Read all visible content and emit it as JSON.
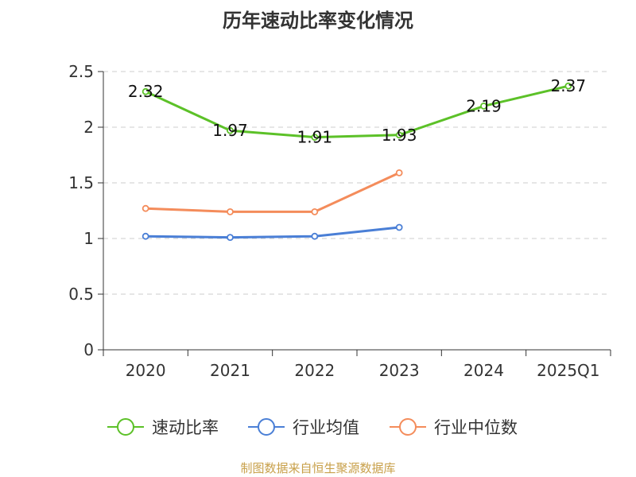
{
  "chart_data": {
    "type": "line",
    "title": "历年速动比率变化情况",
    "categories": [
      "2020",
      "2021",
      "2022",
      "2023",
      "2024",
      "2025Q1"
    ],
    "ylim": [
      0,
      2.5
    ],
    "yticks": [
      "0",
      "0.5",
      "1",
      "1.5",
      "2",
      "2.5"
    ],
    "grid": true,
    "legend_position": "bottom",
    "series": [
      {
        "name": "速动比率",
        "color": "#5cc128",
        "values": [
          2.32,
          1.97,
          1.91,
          1.93,
          2.19,
          2.37
        ],
        "labels": [
          "2.32",
          "1.97",
          "1.91",
          "1.93",
          "2.19",
          "2.37"
        ]
      },
      {
        "name": "行业均值",
        "color": "#4a7fd6",
        "values": [
          1.02,
          1.01,
          1.02,
          1.1,
          null,
          null
        ]
      },
      {
        "name": "行业中位数",
        "color": "#f48c5b",
        "values": [
          1.27,
          1.24,
          1.24,
          1.59,
          null,
          null
        ]
      }
    ]
  },
  "source": "制图数据来自恒生聚源数据库"
}
